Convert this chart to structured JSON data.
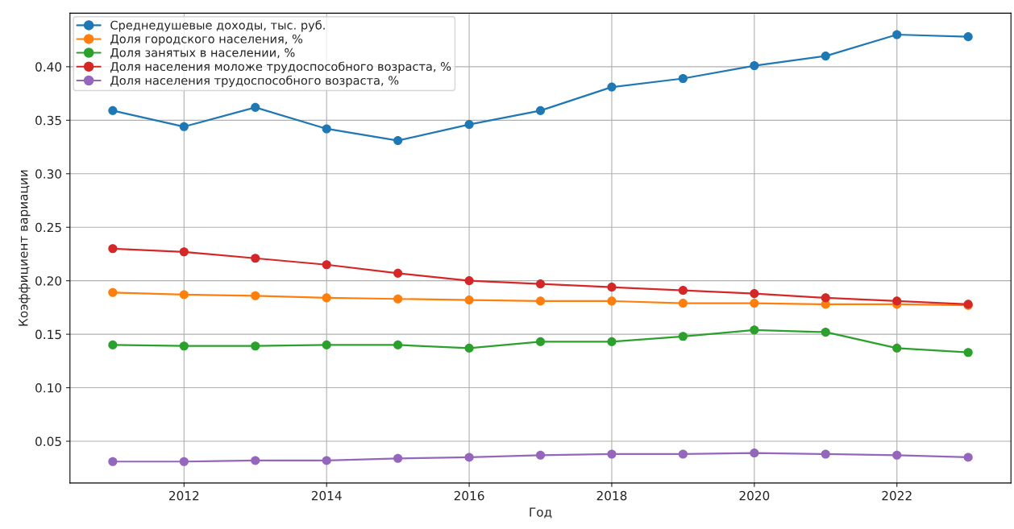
{
  "chart_data": {
    "type": "line",
    "xlabel": "Год",
    "ylabel": "Коэффициент вариации",
    "x": [
      2011,
      2012,
      2013,
      2014,
      2015,
      2016,
      2017,
      2018,
      2019,
      2020,
      2021,
      2022,
      2023
    ],
    "series": [
      {
        "name": "Среднедушевые доходы, тыс. руб.",
        "color": "#1f77b4",
        "values": [
          0.359,
          0.344,
          0.362,
          0.342,
          0.331,
          0.346,
          0.359,
          0.381,
          0.389,
          0.401,
          0.41,
          0.43,
          0.428
        ]
      },
      {
        "name": "Доля городского населения, %",
        "color": "#ff7f0e",
        "values": [
          0.189,
          0.187,
          0.186,
          0.184,
          0.183,
          0.182,
          0.181,
          0.181,
          0.179,
          0.179,
          0.178,
          0.178,
          0.177
        ]
      },
      {
        "name": "Доля занятых в населении, %",
        "color": "#2ca02c",
        "values": [
          0.14,
          0.139,
          0.139,
          0.14,
          0.14,
          0.137,
          0.143,
          0.143,
          0.148,
          0.154,
          0.152,
          0.137,
          0.133
        ]
      },
      {
        "name": "Доля населения моложе трудоспособного возраста, %",
        "color": "#d62728",
        "values": [
          0.23,
          0.227,
          0.221,
          0.215,
          0.207,
          0.2,
          0.197,
          0.194,
          0.191,
          0.188,
          0.184,
          0.181,
          0.178
        ]
      },
      {
        "name": "Доля населения трудоспособного возраста, %",
        "color": "#9467bd",
        "values": [
          0.031,
          0.031,
          0.032,
          0.032,
          0.034,
          0.035,
          0.037,
          0.038,
          0.038,
          0.039,
          0.038,
          0.037,
          0.035
        ]
      }
    ],
    "xlim": [
      2010.4,
      2023.6
    ],
    "xticks": [
      2012,
      2014,
      2016,
      2018,
      2020,
      2022
    ],
    "ylim": [
      0.011,
      0.45
    ],
    "yticks": [
      {
        "value": 0.05,
        "label": "0.05"
      },
      {
        "value": 0.1,
        "label": "0.10"
      },
      {
        "value": 0.15,
        "label": "0.15"
      },
      {
        "value": 0.2,
        "label": "0.20"
      },
      {
        "value": 0.25,
        "label": "0.25"
      },
      {
        "value": 0.3,
        "label": "0.30"
      },
      {
        "value": 0.35,
        "label": "0.35"
      },
      {
        "value": 0.4,
        "label": "0.40"
      }
    ],
    "grid": true,
    "legend": "top left",
    "marker": "circle",
    "line_style": "solid"
  }
}
